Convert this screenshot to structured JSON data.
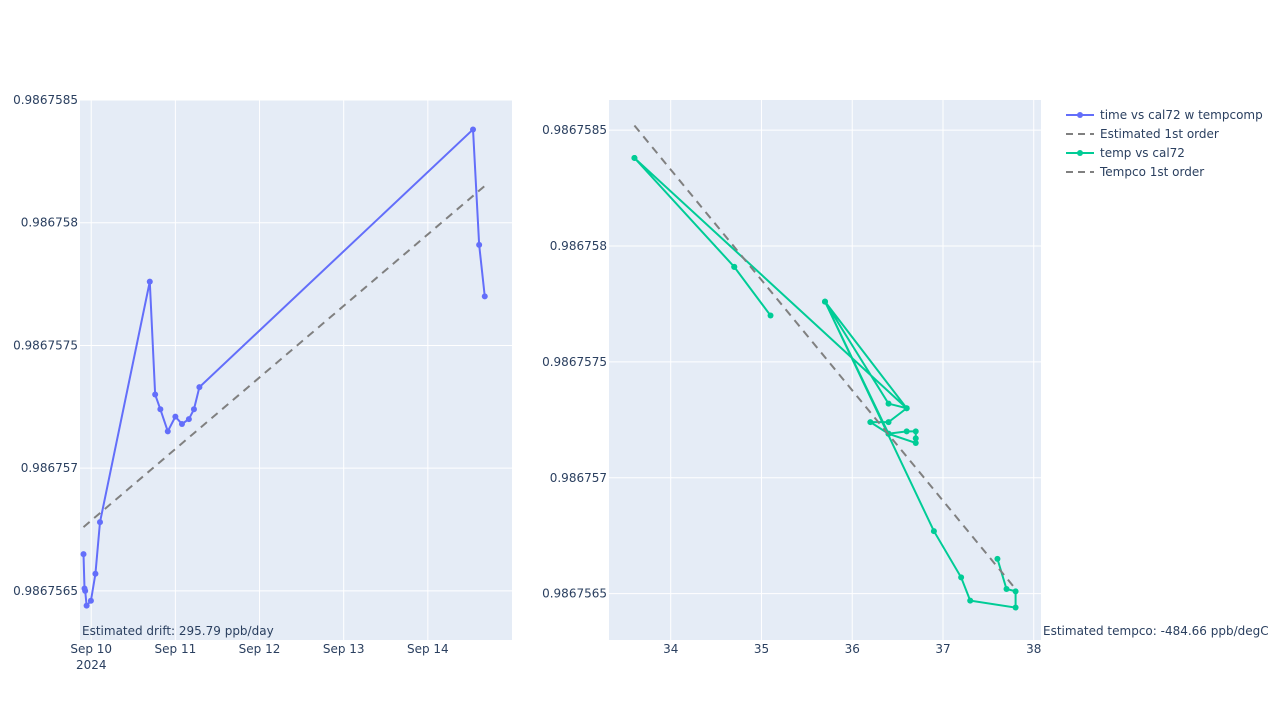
{
  "chart_data": [
    {
      "type": "line",
      "title": "",
      "xlabel": "",
      "ylabel": "",
      "x_axis_type": "date",
      "xlim": [
        "2024-09-09 20:48",
        "2024-09-15 00:00"
      ],
      "ylim": [
        0.9867563,
        0.9867585
      ],
      "x_ticks": [
        {
          "value": "2024-09-10",
          "label": "Sep 10",
          "label2": "2024"
        },
        {
          "value": "2024-09-11",
          "label": "Sep 11",
          "label2": ""
        },
        {
          "value": "2024-09-12",
          "label": "Sep 12",
          "label2": ""
        },
        {
          "value": "2024-09-13",
          "label": "Sep 13",
          "label2": ""
        },
        {
          "value": "2024-09-14",
          "label": "Sep 14",
          "label2": ""
        }
      ],
      "y_ticks": [
        {
          "value": 0.9867565,
          "label": "0.9867565"
        },
        {
          "value": 0.986757,
          "label": "0.986757"
        },
        {
          "value": 0.9867575,
          "label": "0.9867575"
        },
        {
          "value": 0.986758,
          "label": "0.986758"
        },
        {
          "value": 0.9867585,
          "label": "0.9867585"
        }
      ],
      "grid": true,
      "series": [
        {
          "name": "time vs cal72 w tempcomp",
          "mode": "lines+markers",
          "color": "#636efa",
          "x": [
            "2024-09-09 21:48",
            "2024-09-09 22:05",
            "2024-09-09 22:17",
            "2024-09-09 22:41",
            "2024-09-09 23:55",
            "2024-09-10 01:12",
            "2024-09-10 02:30",
            "2024-09-10 16:42",
            "2024-09-10 18:14",
            "2024-09-10 19:43",
            "2024-09-10 21:50",
            "2024-09-11 00:00",
            "2024-09-11 01:53",
            "2024-09-11 03:51",
            "2024-09-11 05:18",
            "2024-09-11 06:51",
            "2024-09-14 12:53",
            "2024-09-14 14:38",
            "2024-09-14 16:14"
          ],
          "y": [
            0.98675665,
            0.98675651,
            0.9867565,
            0.98675644,
            0.98675646,
            0.98675657,
            0.98675678,
            0.98675776,
            0.9867573,
            0.98675724,
            0.98675715,
            0.98675721,
            0.98675718,
            0.9867572,
            0.98675724,
            0.98675733,
            0.98675838,
            0.98675791,
            0.9867577
          ]
        },
        {
          "name": "Estimated 1st order",
          "mode": "lines",
          "dash": "dash",
          "color": "#808080",
          "x": [
            "2024-09-09 21:48",
            "2024-09-14 16:14"
          ],
          "y": [
            0.98675676,
            0.98675815
          ]
        }
      ],
      "annotations": [
        {
          "text": "Estimated drift:  295.79 ppb/day",
          "position": "bottom-left"
        }
      ]
    },
    {
      "type": "line",
      "title": "",
      "xlabel": "",
      "ylabel": "",
      "xlim": [
        33.32,
        38.08
      ],
      "ylim": [
        0.9867563,
        0.98675863
      ],
      "x_ticks": [
        {
          "value": 34,
          "label": "34"
        },
        {
          "value": 35,
          "label": "35"
        },
        {
          "value": 36,
          "label": "36"
        },
        {
          "value": 37,
          "label": "37"
        },
        {
          "value": 38,
          "label": "38"
        }
      ],
      "y_ticks": [
        {
          "value": 0.9867565,
          "label": "0.9867565"
        },
        {
          "value": 0.986757,
          "label": "0.986757"
        },
        {
          "value": 0.9867575,
          "label": "0.9867575"
        },
        {
          "value": 0.986758,
          "label": "0.986758"
        },
        {
          "value": 0.9867585,
          "label": "0.9867585"
        }
      ],
      "grid": true,
      "series": [
        {
          "name": "temp vs cal72",
          "mode": "lines+markers",
          "color": "#00cc96",
          "x": [
            33.6,
            34.7,
            35.1,
            34.7,
            33.6,
            36.6,
            36.4,
            36.2,
            36.4,
            36.6,
            36.7,
            36.7,
            36.7,
            36.4,
            35.7,
            36.6,
            36.4,
            35.7,
            36.9,
            37.2,
            37.3,
            37.8,
            37.8,
            37.7,
            37.6
          ],
          "y": [
            0.98675838,
            0.98675791,
            0.9867577,
            0.98675791,
            0.98675838,
            0.9867573,
            0.98675724,
            0.98675724,
            0.98675719,
            0.9867572,
            0.9867572,
            0.98675717,
            0.98675715,
            0.98675719,
            0.98675776,
            0.9867573,
            0.98675732,
            0.98675776,
            0.98675677,
            0.98675657,
            0.98675647,
            0.98675644,
            0.98675651,
            0.98675652,
            0.98675665
          ]
        },
        {
          "name": "Tempco 1st order",
          "mode": "lines",
          "dash": "dash",
          "color": "#808080",
          "x": [
            33.6,
            37.8
          ],
          "y": [
            0.98675852,
            0.98675652
          ]
        }
      ],
      "annotations": [
        {
          "text": "Estimated tempco:  -484.66 ppb/degC",
          "position": "bottom-right"
        }
      ]
    }
  ],
  "legend": {
    "placement": "top-right",
    "items": [
      {
        "name": "time vs cal72 w tempcomp",
        "color": "#636efa",
        "style": "lines+markers"
      },
      {
        "name": "Estimated 1st order",
        "color": "#808080",
        "style": "dash"
      },
      {
        "name": "temp vs cal72",
        "color": "#00cc96",
        "style": "lines+markers"
      },
      {
        "name": "Tempco 1st order",
        "color": "#808080",
        "style": "dash"
      }
    ]
  },
  "colors": {
    "plot_bg": "#e5ecf6",
    "grid": "#ffffff",
    "text": "#2a3f5f"
  }
}
